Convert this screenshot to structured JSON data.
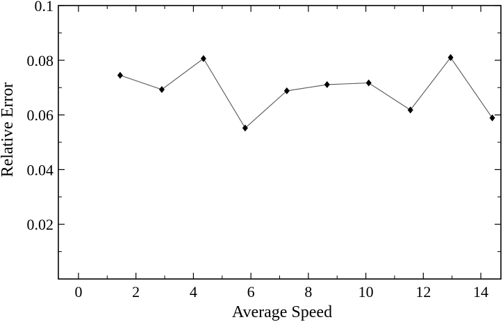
{
  "chart_data": {
    "type": "line",
    "xlabel": "Average Speed",
    "ylabel": "Relative Error",
    "xlim": [
      -0.7,
      14.7
    ],
    "ylim": [
      0,
      0.1
    ],
    "grid": false,
    "legend": "none",
    "x_ticks": [
      {
        "value": 0,
        "label": "0"
      },
      {
        "value": 2,
        "label": "2"
      },
      {
        "value": 4,
        "label": "4"
      },
      {
        "value": 6,
        "label": "6"
      },
      {
        "value": 8,
        "label": "8"
      },
      {
        "value": 10,
        "label": "10"
      },
      {
        "value": 12,
        "label": "12"
      },
      {
        "value": 14,
        "label": "14"
      }
    ],
    "x_minor_ticks": [
      1,
      3,
      5,
      7,
      9,
      11,
      13
    ],
    "y_ticks": [
      {
        "value": 0.02,
        "label": "0.02"
      },
      {
        "value": 0.04,
        "label": "0.04"
      },
      {
        "value": 0.06,
        "label": "0.06"
      },
      {
        "value": 0.08,
        "label": "0.08"
      },
      {
        "value": 0.1,
        "label": "0.1"
      }
    ],
    "y_minor_ticks": [
      0.01,
      0.03,
      0.05,
      0.07,
      0.09
    ],
    "series": [
      {
        "x": [
          1.45,
          2.9,
          4.35,
          5.8,
          7.25,
          8.65,
          10.1,
          11.55,
          12.95,
          14.4
        ],
        "y": [
          0.0745,
          0.0693,
          0.0806,
          0.0552,
          0.0688,
          0.0711,
          0.0717,
          0.0618,
          0.081,
          0.0589
        ],
        "color": "#000000",
        "line_color": "#555555",
        "marker": "diamond"
      }
    ]
  }
}
